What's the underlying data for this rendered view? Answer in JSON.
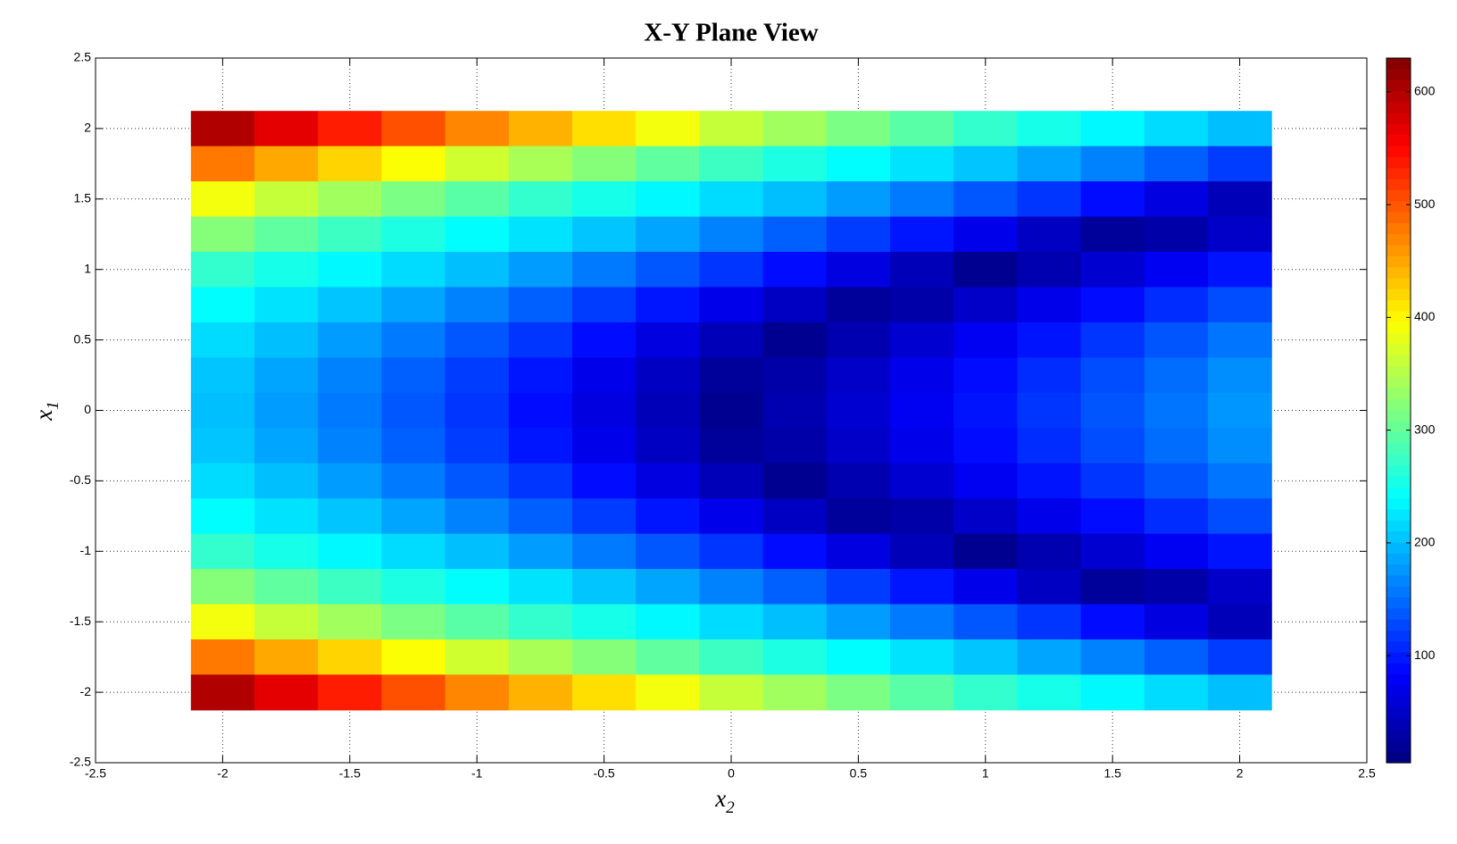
{
  "chart_data": {
    "type": "heatmap",
    "title": "X-Y Plane View",
    "xlabel": {
      "base": "x",
      "sub": "2"
    },
    "ylabel": {
      "base": "x",
      "sub": "1"
    },
    "x": [
      -2,
      -1.75,
      -1.5,
      -1.25,
      -1,
      -0.75,
      -0.5,
      -0.25,
      0,
      0.25,
      0.5,
      0.75,
      1,
      1.25,
      1.5,
      1.75,
      2
    ],
    "y": [
      2,
      1.75,
      1.5,
      1.25,
      1,
      0.75,
      0.5,
      0.25,
      0,
      -0.25,
      -0.5,
      -0.75,
      -1,
      -1.25,
      -1.5,
      -1.75,
      -2
    ],
    "z": [
      [
        600,
        568,
        535,
        503,
        470,
        443,
        415,
        388,
        360,
        338,
        315,
        293,
        270,
        253,
        235,
        218,
        200
      ],
      [
        478,
        449,
        422,
        394,
        367,
        343,
        321,
        298,
        276,
        257,
        239,
        222,
        204,
        184,
        163,
        142,
        120
      ],
      [
        388,
        360,
        338,
        315,
        293,
        270,
        253,
        235,
        218,
        200,
        179,
        158,
        136,
        115,
        90,
        65,
        40
      ],
      [
        321,
        298,
        276,
        257,
        239,
        222,
        204,
        184,
        163,
        142,
        120,
        96,
        71,
        46,
        21,
        30,
        50
      ],
      [
        270,
        253,
        235,
        218,
        200,
        179,
        158,
        136,
        115,
        90,
        65,
        40,
        15,
        35,
        55,
        75,
        95
      ],
      [
        239,
        222,
        204,
        184,
        163,
        142,
        120,
        96,
        71,
        46,
        21,
        30,
        50,
        70,
        90,
        110,
        130
      ],
      [
        218,
        200,
        179,
        158,
        136,
        115,
        90,
        65,
        40,
        15,
        35,
        55,
        75,
        95,
        115,
        135,
        155
      ],
      [
        204,
        184,
        163,
        142,
        120,
        96,
        71,
        46,
        21,
        30,
        50,
        70,
        90,
        110,
        130,
        150,
        170
      ],
      [
        200,
        179,
        158,
        136,
        115,
        90,
        65,
        40,
        15,
        35,
        55,
        75,
        95,
        115,
        135,
        155,
        175
      ],
      [
        204,
        184,
        163,
        142,
        120,
        96,
        71,
        46,
        21,
        30,
        50,
        70,
        90,
        110,
        130,
        150,
        170
      ],
      [
        218,
        200,
        179,
        158,
        136,
        115,
        90,
        65,
        40,
        15,
        35,
        55,
        75,
        95,
        115,
        135,
        155
      ],
      [
        239,
        222,
        204,
        184,
        163,
        142,
        120,
        96,
        71,
        46,
        21,
        30,
        50,
        70,
        90,
        110,
        130
      ],
      [
        270,
        253,
        235,
        218,
        200,
        179,
        158,
        136,
        115,
        90,
        65,
        40,
        15,
        35,
        55,
        75,
        95
      ],
      [
        321,
        298,
        276,
        257,
        239,
        222,
        204,
        184,
        163,
        142,
        120,
        96,
        71,
        46,
        21,
        30,
        50
      ],
      [
        388,
        360,
        338,
        315,
        293,
        270,
        253,
        235,
        218,
        200,
        179,
        158,
        136,
        115,
        90,
        65,
        40
      ],
      [
        478,
        449,
        422,
        394,
        367,
        343,
        321,
        298,
        276,
        257,
        239,
        222,
        204,
        184,
        163,
        142,
        120
      ],
      [
        600,
        568,
        535,
        503,
        470,
        443,
        415,
        388,
        360,
        338,
        315,
        293,
        270,
        253,
        235,
        218,
        200
      ]
    ],
    "colormap": "jet",
    "clim": [
      5,
      630
    ],
    "cticks": [
      100,
      200,
      300,
      400,
      500,
      600
    ],
    "xlim": [
      -2.5,
      2.5
    ],
    "xticks": [
      -2.5,
      -2,
      -1.5,
      -1,
      -0.5,
      0,
      0.5,
      1,
      1.5,
      2,
      2.5
    ],
    "ylim": [
      -2.5,
      2.5
    ],
    "yticks": [
      -2.5,
      -2,
      -1.5,
      -1,
      -0.5,
      0,
      0.5,
      1,
      1.5,
      2,
      2.5
    ],
    "grid": true
  }
}
